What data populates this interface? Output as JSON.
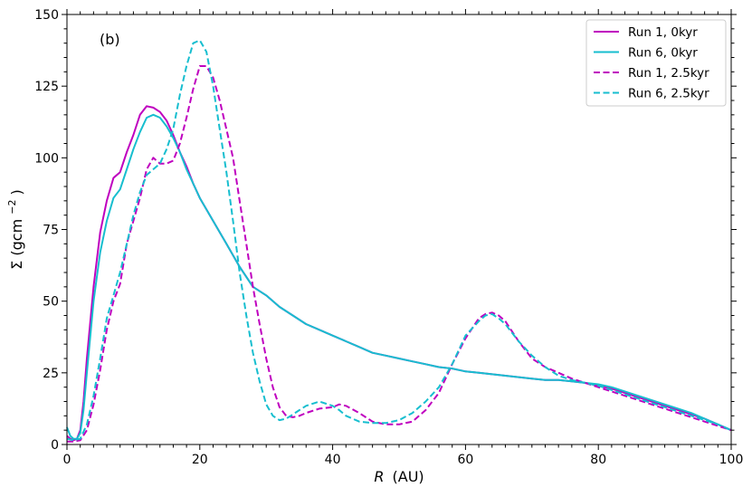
{
  "chart_data": {
    "type": "line",
    "panel_label": "(b)",
    "xlabel_var": "R",
    "xlabel_unit": "(AU)",
    "ylabel_main": "Σ (gcm",
    "ylabel_exp": "−2",
    "ylabel_close": ")",
    "xlim": [
      0,
      100
    ],
    "ylim": [
      0,
      150
    ],
    "xticks": [
      0,
      20,
      40,
      60,
      80,
      100
    ],
    "yticks": [
      0,
      25,
      50,
      75,
      100,
      125,
      150
    ],
    "legend_position": "top-right",
    "series": [
      {
        "name": "Run 1, 0kyr",
        "color": "#bf00bf",
        "dash": "solid",
        "x": [
          0,
          0.5,
          1,
          1.5,
          2,
          2.5,
          3,
          4,
          5,
          6,
          7,
          8,
          9,
          10,
          11,
          12,
          13,
          14,
          15,
          16,
          17,
          18,
          19,
          20,
          22,
          24,
          26,
          28,
          30,
          32,
          34,
          36,
          38,
          40,
          42,
          44,
          46,
          48,
          50,
          52,
          54,
          56,
          58,
          60,
          62,
          64,
          66,
          68,
          70,
          72,
          74,
          76,
          78,
          80,
          82,
          84,
          86,
          88,
          90,
          92,
          94,
          96,
          98,
          100
        ],
        "y": [
          3,
          2,
          1.5,
          2,
          5,
          15,
          30,
          55,
          74,
          85,
          93,
          95,
          102,
          108,
          115,
          118,
          117.5,
          116,
          113,
          108,
          102,
          97,
          91,
          86,
          78,
          70,
          62,
          55,
          52,
          48,
          45,
          42,
          40,
          38,
          36,
          34,
          32,
          31,
          30,
          29,
          28,
          27,
          26.5,
          25.5,
          25,
          24.5,
          24,
          23.5,
          23,
          22.5,
          22.5,
          22,
          21.5,
          20.5,
          19.5,
          18,
          16.5,
          15,
          13.5,
          12,
          10.5,
          9,
          7,
          5
        ]
      },
      {
        "name": "Run 6, 0kyr",
        "color": "#17becf",
        "dash": "solid",
        "x": [
          0,
          0.5,
          1,
          1.5,
          2,
          2.5,
          3,
          4,
          5,
          6,
          7,
          8,
          9,
          10,
          11,
          12,
          13,
          14,
          15,
          16,
          17,
          18,
          19,
          20,
          22,
          24,
          26,
          28,
          30,
          32,
          34,
          36,
          38,
          40,
          42,
          44,
          46,
          48,
          50,
          52,
          54,
          56,
          58,
          60,
          62,
          64,
          66,
          68,
          70,
          72,
          74,
          76,
          78,
          80,
          82,
          84,
          86,
          88,
          90,
          92,
          94,
          96,
          98,
          100
        ],
        "y": [
          6,
          3,
          2,
          2,
          4,
          12,
          25,
          50,
          67,
          78,
          86,
          89,
          96,
          103,
          109,
          114,
          115,
          114,
          111,
          107,
          102,
          96,
          91,
          86,
          78,
          70,
          62,
          55,
          52,
          48,
          45,
          42,
          40,
          38,
          36,
          34,
          32,
          31,
          30,
          29,
          28,
          27,
          26.5,
          25.5,
          25,
          24.5,
          24,
          23.5,
          23,
          22.5,
          22.5,
          22,
          21.5,
          21,
          20,
          18.5,
          17,
          15.5,
          14,
          12.5,
          11,
          9,
          7,
          5
        ]
      },
      {
        "name": "Run 1, 2.5kyr",
        "color": "#bf00bf",
        "dash": "dashed",
        "x": [
          0,
          1,
          2,
          3,
          4,
          5,
          6,
          7,
          8,
          9,
          10,
          11,
          12,
          13,
          14,
          15,
          16,
          17,
          18,
          19,
          20,
          21,
          22,
          23,
          24,
          25,
          26,
          27,
          28,
          29,
          30,
          31,
          32,
          33,
          34,
          35,
          36,
          38,
          40,
          41,
          42,
          44,
          46,
          48,
          50,
          52,
          54,
          56,
          58,
          60,
          62,
          63,
          64,
          65,
          66,
          68,
          70,
          72,
          74,
          76,
          78,
          80,
          82,
          84,
          86,
          88,
          90,
          92,
          94,
          96,
          98,
          100
        ],
        "y": [
          1,
          1,
          1.5,
          5,
          14,
          26,
          40,
          50,
          56,
          70,
          78,
          86,
          96,
          100,
          98,
          98,
          99,
          105,
          114,
          124,
          132,
          132,
          128,
          120,
          110,
          100,
          85,
          70,
          55,
          42,
          30,
          20,
          13,
          10,
          9.5,
          10,
          11,
          12.5,
          13,
          14,
          13.5,
          11,
          8,
          7,
          7,
          8,
          12,
          18,
          28,
          37,
          44,
          45.5,
          46,
          45,
          43,
          36,
          30,
          27,
          25,
          23,
          21.5,
          20,
          18.5,
          17,
          15.5,
          14,
          12.5,
          11,
          9.5,
          8,
          6.5,
          5
        ]
      },
      {
        "name": "Run 6, 2.5kyr",
        "color": "#17becf",
        "dash": "dashed",
        "x": [
          0,
          1,
          2,
          3,
          4,
          5,
          6,
          7,
          8,
          9,
          10,
          11,
          12,
          13,
          14,
          15,
          16,
          17,
          18,
          19,
          20,
          21,
          22,
          23,
          24,
          25,
          26,
          27,
          28,
          29,
          30,
          31,
          32,
          33,
          34,
          35,
          36,
          38,
          40,
          41,
          42,
          44,
          46,
          48,
          50,
          52,
          54,
          56,
          58,
          60,
          62,
          63,
          64,
          65,
          66,
          68,
          70,
          72,
          74,
          76,
          78,
          80,
          82,
          84,
          86,
          88,
          90,
          92,
          94,
          96,
          98,
          100
        ],
        "y": [
          2,
          1.5,
          2,
          7,
          17,
          30,
          44,
          52,
          60,
          70,
          80,
          88,
          94,
          96,
          98,
          103,
          110,
          122,
          132,
          140,
          141,
          137,
          125,
          110,
          95,
          78,
          60,
          45,
          32,
          22,
          14,
          10,
          8.5,
          9,
          10.5,
          12,
          13.5,
          15,
          13.5,
          12,
          10,
          8,
          7.5,
          7.5,
          8.5,
          11,
          15,
          20,
          28,
          38,
          43,
          45,
          45.5,
          44,
          42,
          36,
          31,
          27,
          24,
          22.5,
          21.5,
          20.5,
          19,
          17.5,
          16,
          14.5,
          13,
          11.5,
          10,
          8.5,
          7,
          5
        ]
      }
    ]
  }
}
